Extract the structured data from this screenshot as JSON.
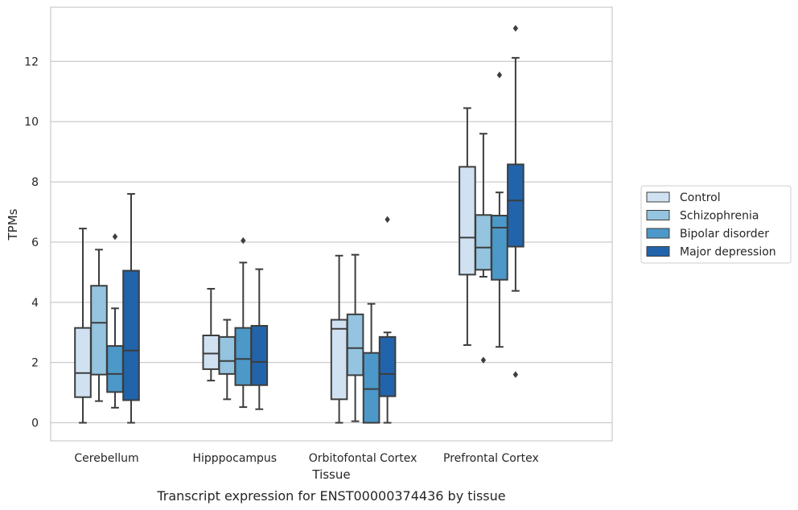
{
  "chart_data": {
    "type": "box",
    "title": "",
    "caption": "Transcript expression for ENST00000374436 by tissue",
    "xlabel": "Tissue",
    "ylabel": "TPMs",
    "ylim": [
      -0.6,
      13.8
    ],
    "yticks": [
      0,
      2,
      4,
      6,
      8,
      10,
      12
    ],
    "grid": "horizontal",
    "legend_position": "right",
    "categories": [
      "Cerebellum",
      "Hipppocampus",
      "Orbitofontal Cortex",
      "Prefrontal Cortex"
    ],
    "series": [
      {
        "name": "Control",
        "color": "#d0e1f2",
        "boxes": [
          {
            "whislo": 0.0,
            "q1": 0.85,
            "med": 1.65,
            "q3": 3.15,
            "whishi": 6.45,
            "fliers": []
          },
          {
            "whislo": 1.4,
            "q1": 1.78,
            "med": 2.3,
            "q3": 2.9,
            "whishi": 4.45,
            "fliers": []
          },
          {
            "whislo": 0.0,
            "q1": 0.78,
            "med": 3.12,
            "q3": 3.42,
            "whishi": 5.55,
            "fliers": []
          },
          {
            "whislo": 2.58,
            "q1": 4.92,
            "med": 6.15,
            "q3": 8.5,
            "whishi": 10.45,
            "fliers": []
          }
        ]
      },
      {
        "name": "Schizophrenia",
        "color": "#94c4df",
        "boxes": [
          {
            "whislo": 0.72,
            "q1": 1.6,
            "med": 3.32,
            "q3": 4.55,
            "whishi": 5.75,
            "fliers": []
          },
          {
            "whislo": 0.78,
            "q1": 1.62,
            "med": 2.05,
            "q3": 2.85,
            "whishi": 3.42,
            "fliers": []
          },
          {
            "whislo": 0.05,
            "q1": 1.58,
            "med": 2.48,
            "q3": 3.6,
            "whishi": 5.58,
            "fliers": []
          },
          {
            "whislo": 4.85,
            "q1": 5.08,
            "med": 5.82,
            "q3": 6.9,
            "whishi": 9.6,
            "fliers": [
              2.08
            ]
          }
        ]
      },
      {
        "name": "Bipolar disorder",
        "color": "#4b98c9",
        "boxes": [
          {
            "whislo": 0.5,
            "q1": 1.02,
            "med": 1.62,
            "q3": 2.55,
            "whishi": 3.8,
            "fliers": [
              6.18
            ]
          },
          {
            "whislo": 0.52,
            "q1": 1.25,
            "med": 2.12,
            "q3": 3.15,
            "whishi": 5.32,
            "fliers": [
              6.05
            ]
          },
          {
            "whislo": 0.0,
            "q1": 0.0,
            "med": 1.12,
            "q3": 2.32,
            "whishi": 3.95,
            "fliers": []
          },
          {
            "whislo": 2.52,
            "q1": 4.75,
            "med": 6.48,
            "q3": 6.88,
            "whishi": 7.65,
            "fliers": [
              11.55
            ]
          }
        ]
      },
      {
        "name": "Major depression",
        "color": "#2164ab",
        "boxes": [
          {
            "whislo": 0.0,
            "q1": 0.75,
            "med": 2.4,
            "q3": 5.05,
            "whishi": 7.6,
            "fliers": []
          },
          {
            "whislo": 0.45,
            "q1": 1.25,
            "med": 2.02,
            "q3": 3.22,
            "whishi": 5.1,
            "fliers": []
          },
          {
            "whislo": 0.0,
            "q1": 0.88,
            "med": 1.62,
            "q3": 2.85,
            "whishi": 3.0,
            "fliers": [
              6.75
            ]
          },
          {
            "whislo": 4.38,
            "q1": 5.85,
            "med": 7.38,
            "q3": 8.58,
            "whishi": 12.12,
            "fliers": [
              1.6,
              13.1
            ]
          }
        ]
      }
    ]
  }
}
